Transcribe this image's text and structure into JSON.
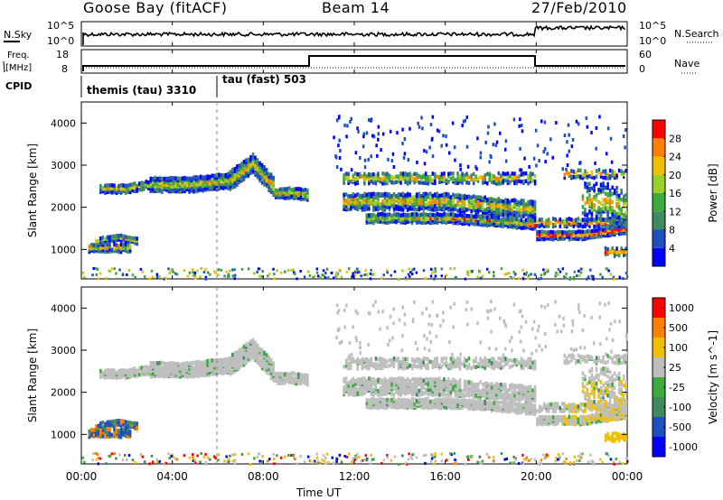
{
  "header": {
    "station": "Goose Bay (fitACF)",
    "beam": "Beam 14",
    "date": "27/Feb/2010"
  },
  "panels": {
    "nsky": {
      "label": "N.Sky",
      "right_label": "N.Search",
      "ticks_left": [
        "10^5",
        "10^0"
      ],
      "ticks_right": [
        "10^5",
        "10^0"
      ]
    },
    "freq": {
      "label_top": "Freq.",
      "label_bottom": "[MHz]",
      "right_label": "Nave",
      "ticks_left": [
        "18",
        "8"
      ],
      "ticks_right": [
        "60",
        "0"
      ]
    },
    "cpid": {
      "label": "CPID",
      "modes": [
        "themis (tau) 3310",
        "tau (fast) 503"
      ]
    }
  },
  "chart_data": [
    {
      "type": "heatmap",
      "name": "Power",
      "ylabel": "Slant Range [km]",
      "colorbar_label": "Power [dB]",
      "colorbar_ticks": [
        "28",
        "24",
        "20",
        "16",
        "12",
        "8",
        "4"
      ],
      "colors": [
        "#0000ff",
        "#1f4fbf",
        "#3f8a5f",
        "#3caa3c",
        "#9ad02a",
        "#f0c000",
        "#ff8000",
        "#ff0000"
      ],
      "ylim": [
        300,
        4500
      ],
      "yticks": [
        "4000",
        "3000",
        "2000",
        "1000"
      ]
    },
    {
      "type": "heatmap",
      "name": "Velocity",
      "ylabel": "Slant Range [km]",
      "colorbar_label": "Velocity [m s^-1]",
      "colorbar_ticks": [
        "1000",
        "500",
        "100",
        "25",
        "-25",
        "-100",
        "-500",
        "-1000"
      ],
      "colors": [
        "#0000ff",
        "#1f4fbf",
        "#3f8a5f",
        "#3caa3c",
        "#bebebe",
        "#f0c000",
        "#ff8000",
        "#ff0000"
      ],
      "ylim": [
        300,
        4500
      ],
      "yticks": [
        "4000",
        "3000",
        "2000",
        "1000"
      ]
    }
  ],
  "xaxis": {
    "label": "Time UT",
    "ticks": [
      "00:00",
      "04:00",
      "08:00",
      "12:00",
      "16:00",
      "20:00",
      "00:00"
    ]
  }
}
